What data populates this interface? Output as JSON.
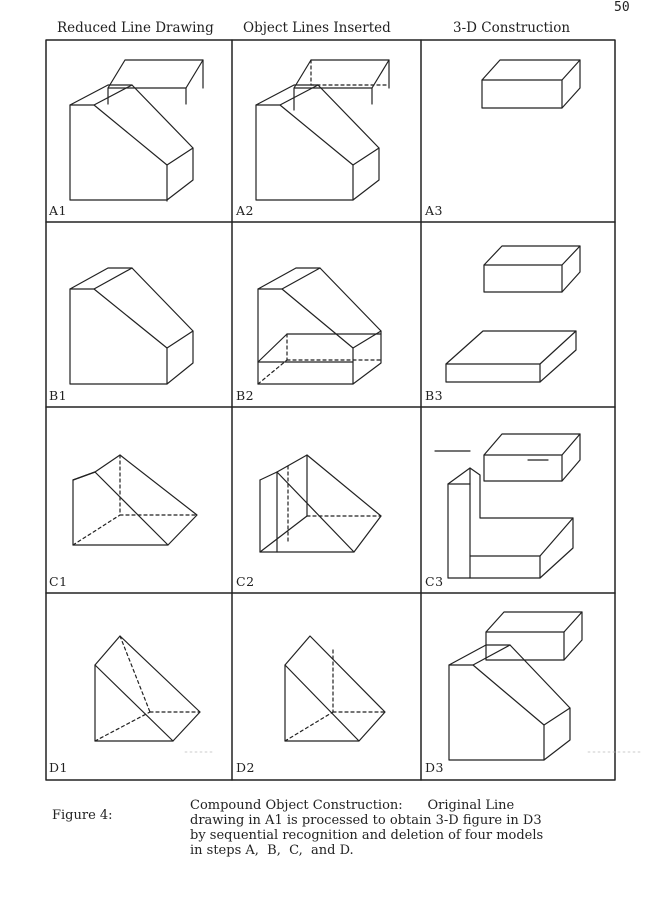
{
  "page_number": "50",
  "column_headers": [
    "Reduced Line Drawing",
    "Object Lines Inserted",
    "3-D Construction"
  ],
  "cell_labels": [
    [
      "A1",
      "A2",
      "A3"
    ],
    [
      "B1",
      "B2",
      "B3"
    ],
    [
      "C1",
      "C2",
      "C3"
    ],
    [
      "D1",
      "D2",
      "D3"
    ]
  ],
  "caption": {
    "label": "Figure 4:",
    "lines": [
      "Compound Object Construction:      Original Line",
      "drawing in A1 is processed to obtain 3-D figure in D3",
      "by sequential recognition and deletion of four models",
      "in steps A,  B,  C,  and D."
    ]
  }
}
